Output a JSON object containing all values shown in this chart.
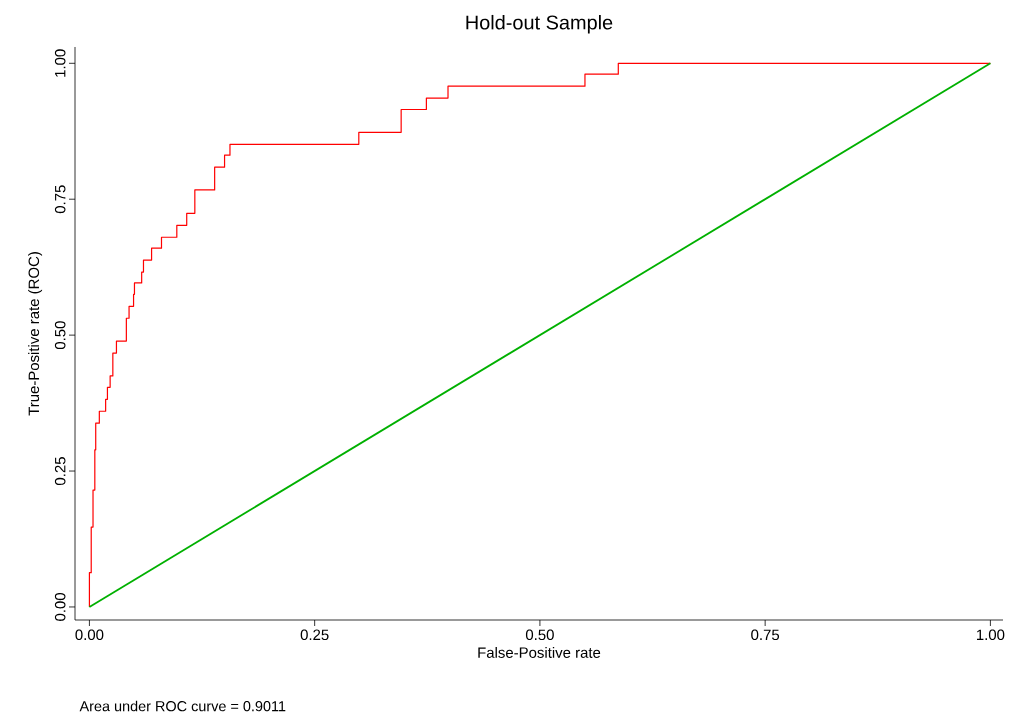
{
  "chart_data": {
    "type": "line",
    "title": "Hold-out Sample",
    "xlabel": "False-Positive rate",
    "ylabel": "True-Positive rate (ROC)",
    "annotations": [
      "Area under ROC curve = 0.9011"
    ],
    "xlim": [
      -0.016,
      1.014
    ],
    "ylim": [
      -0.024,
      1.03
    ],
    "xticks": [
      {
        "value": 0,
        "label": "0.00"
      },
      {
        "value": 0.25,
        "label": "0.25"
      },
      {
        "value": 0.5,
        "label": "0.50"
      },
      {
        "value": 0.75,
        "label": "0.75"
      },
      {
        "value": 1,
        "label": "1.00"
      }
    ],
    "yticks": [
      {
        "value": 0,
        "label": "0.00"
      },
      {
        "value": 0.25,
        "label": "0.25"
      },
      {
        "value": 0.5,
        "label": "0.50"
      },
      {
        "value": 0.75,
        "label": "0.75"
      },
      {
        "value": 1,
        "label": "1.00"
      }
    ],
    "grid": false,
    "marker": "none",
    "series": [
      {
        "type": "step",
        "color": "#ff0000",
        "x": [
          0,
          0,
          0.002,
          0.004,
          0.006,
          0.007,
          0.011,
          0.018,
          0.02,
          0.023,
          0.026,
          0.03,
          0.041,
          0.044,
          0.049,
          0.05,
          0.058,
          0.06,
          0.069,
          0.08,
          0.097,
          0.108,
          0.117,
          0.139,
          0.15,
          0.156,
          0.299,
          0.346,
          0.374,
          0.398,
          0.55,
          0.587,
          1
        ],
        "values": [
          0,
          0.063,
          0.147,
          0.215,
          0.289,
          0.338,
          0.36,
          0.382,
          0.404,
          0.425,
          0.467,
          0.489,
          0.531,
          0.553,
          0.575,
          0.596,
          0.616,
          0.638,
          0.66,
          0.68,
          0.702,
          0.724,
          0.767,
          0.809,
          0.831,
          0.851,
          0.873,
          0.915,
          0.936,
          0.958,
          0.98,
          1.0,
          1.0
        ]
      },
      {
        "type": "line",
        "color": "#00b000",
        "x": [
          0,
          1
        ],
        "values": [
          0,
          1
        ]
      }
    ]
  }
}
